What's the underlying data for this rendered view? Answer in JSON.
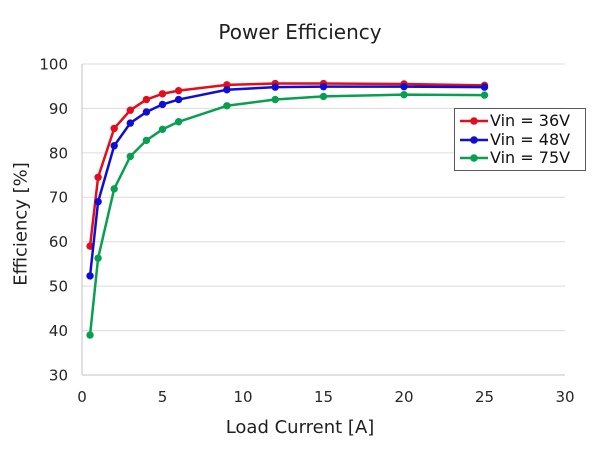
{
  "chart_data": {
    "type": "line",
    "title": "Power Efficiency",
    "xlabel": "Load Current [A]",
    "ylabel": "Efficiency [%]",
    "xlim": [
      0,
      30
    ],
    "ylim": [
      30,
      100
    ],
    "xticks": [
      0,
      5,
      10,
      15,
      20,
      25,
      30
    ],
    "yticks": [
      30,
      40,
      50,
      60,
      70,
      80,
      90,
      100
    ],
    "grid": "horizontal-only",
    "legend_position": "inside-upper-right",
    "x": [
      0.5,
      1,
      2,
      3,
      4,
      5,
      6,
      9,
      12,
      15,
      20,
      25
    ],
    "series": [
      {
        "name": "Vin = 36V",
        "color": "#e40d1b",
        "values": [
          59.0,
          74.5,
          85.5,
          89.6,
          92.0,
          93.3,
          94.0,
          95.3,
          95.6,
          95.6,
          95.5,
          95.2
        ]
      },
      {
        "name": "Vin = 48V",
        "color": "#0f0fd2",
        "values": [
          52.3,
          69.0,
          81.6,
          86.7,
          89.2,
          90.9,
          92.0,
          94.2,
          94.8,
          94.9,
          94.9,
          94.8
        ]
      },
      {
        "name": "Vin = 75V",
        "color": "#08a050",
        "values": [
          39.0,
          56.3,
          71.9,
          79.2,
          82.8,
          85.3,
          87.0,
          90.6,
          92.0,
          92.7,
          93.1,
          93.0
        ]
      }
    ],
    "colors": {
      "grid": "#dcdcdc",
      "axis": "#c3c3c3",
      "tick_text": "#262626",
      "title_text": "#1f1f1f",
      "legend_border": "#595959",
      "background": "#ffffff"
    }
  }
}
